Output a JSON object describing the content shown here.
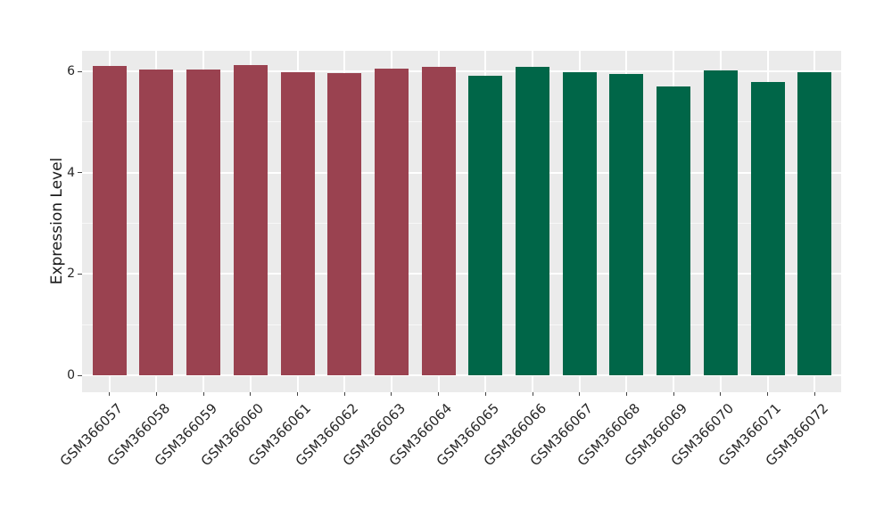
{
  "chart_data": {
    "type": "bar",
    "title": "",
    "xlabel": "",
    "ylabel": "Expression Level",
    "categories": [
      "GSM366057",
      "GSM366058",
      "GSM366059",
      "GSM366060",
      "GSM366061",
      "GSM366062",
      "GSM366063",
      "GSM366064",
      "GSM366065",
      "GSM366066",
      "GSM366067",
      "GSM366068",
      "GSM366069",
      "GSM366070",
      "GSM366071",
      "GSM366072"
    ],
    "values": [
      6.1,
      6.04,
      6.04,
      6.12,
      5.98,
      5.96,
      6.05,
      6.09,
      5.91,
      6.09,
      5.99,
      5.94,
      5.7,
      6.02,
      5.79,
      5.98
    ],
    "bar_colors": [
      "#9A4250",
      "#9A4250",
      "#9A4250",
      "#9A4250",
      "#9A4250",
      "#9A4250",
      "#9A4250",
      "#9A4250",
      "#006648",
      "#006648",
      "#006648",
      "#006648",
      "#006648",
      "#006648",
      "#006648",
      "#006648"
    ],
    "bar_groups": [
      {
        "name": "left-group",
        "color": "#9A4250",
        "first_category": "GSM366057",
        "last_category": "GSM366064"
      },
      {
        "name": "right-group",
        "color": "#006648",
        "first_category": "GSM366065",
        "last_category": "GSM366072"
      }
    ],
    "y_ticks": {
      "values": [
        0,
        2,
        4,
        6
      ],
      "labels": [
        "0",
        "2",
        "4",
        "6"
      ]
    },
    "y_minor_ticks": [
      1,
      3,
      5
    ],
    "ylim": [
      0,
      6.4
    ],
    "x_tick_angle_deg": -45,
    "legend": "none",
    "grid": {
      "major": true,
      "minor": true,
      "orientation": "horizontal-and-vertical"
    },
    "style": {
      "page_bg": "#FFFFFF",
      "panel_bg": "#EBEBEB",
      "grid_color": "#FFFFFF",
      "tick_mark_color": "#444444",
      "tick_label_color": "#262626",
      "axis_title_color": "#1A1A1A"
    }
  }
}
